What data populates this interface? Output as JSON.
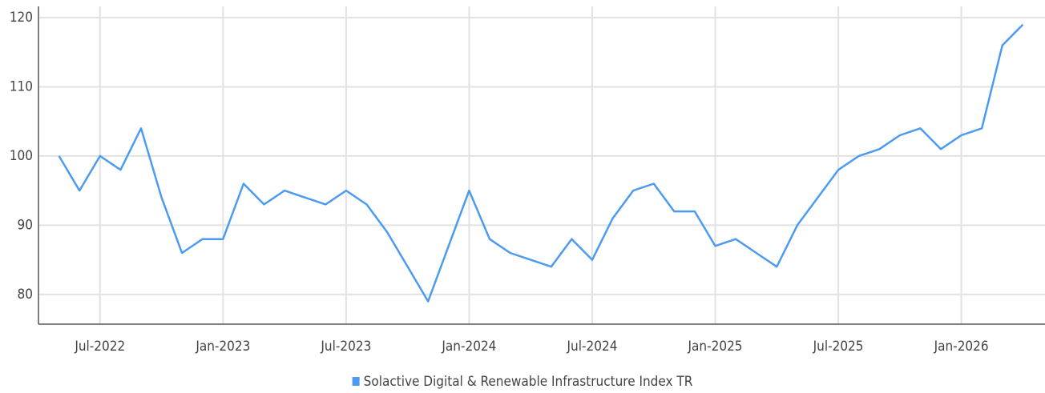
{
  "chart_data": {
    "type": "line",
    "x": [
      "2022-05",
      "2022-06",
      "2022-07",
      "2022-08",
      "2022-09",
      "2022-10",
      "2022-11",
      "2022-12",
      "2023-01",
      "2023-02",
      "2023-03",
      "2023-04",
      "2023-05",
      "2023-06",
      "2023-07",
      "2023-08",
      "2023-09",
      "2023-10",
      "2023-11",
      "2023-12",
      "2024-01",
      "2024-02",
      "2024-03",
      "2024-04",
      "2024-05",
      "2024-06",
      "2024-07",
      "2024-08",
      "2024-09",
      "2024-10",
      "2024-11",
      "2024-12",
      "2025-01",
      "2025-02",
      "2025-03",
      "2025-04",
      "2025-05",
      "2025-06",
      "2025-07",
      "2025-08",
      "2025-09",
      "2025-10",
      "2025-11",
      "2025-12",
      "2026-01",
      "2026-02",
      "2026-03",
      "2026-04"
    ],
    "series": [
      {
        "name": "Solactive Digital & Renewable Infrastructure Index TR",
        "color": "#4d9bf0",
        "values": [
          100,
          95,
          100,
          98,
          104,
          94,
          86,
          88,
          88,
          96,
          93,
          95,
          94,
          93,
          95,
          93,
          89,
          84,
          79,
          87,
          95,
          88,
          86,
          85,
          84,
          88,
          85,
          91,
          95,
          96,
          92,
          92,
          87,
          88,
          86,
          84,
          90,
          94,
          98,
          100,
          101,
          103,
          104,
          101,
          103,
          104,
          116,
          119
        ]
      }
    ],
    "xlim": [
      "2022-04",
      "2026-05"
    ],
    "xticks": [
      {
        "value": "2022-07",
        "label": "Jul-2022"
      },
      {
        "value": "2023-01",
        "label": "Jan-2023"
      },
      {
        "value": "2023-07",
        "label": "Jul-2023"
      },
      {
        "value": "2024-01",
        "label": "Jan-2024"
      },
      {
        "value": "2024-07",
        "label": "Jul-2024"
      },
      {
        "value": "2025-01",
        "label": "Jan-2025"
      },
      {
        "value": "2025-07",
        "label": "Jul-2025"
      },
      {
        "value": "2026-01",
        "label": "Jan-2026"
      }
    ],
    "ylim": [
      75.7,
      120.5
    ],
    "yticks": [
      80,
      90,
      100,
      110,
      120
    ],
    "grid": true,
    "legend": "bottom"
  }
}
